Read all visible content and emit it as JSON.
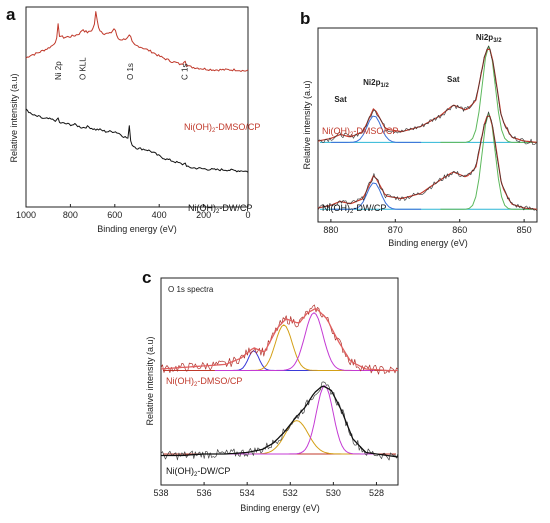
{
  "chart_data": [
    {
      "panel": "a",
      "type": "line",
      "xlabel": "Binding energy (eV)",
      "ylabel": "Relative intensity (a.u)",
      "xlim": [
        1000,
        0
      ],
      "xticks": [
        "1000",
        "800",
        "600",
        "400",
        "200",
        "0"
      ],
      "peak_labels": [
        {
          "text": "Ni 2p",
          "x": 855
        },
        {
          "text": "O KLL",
          "x": 745
        },
        {
          "text": "O 1s",
          "x": 531
        },
        {
          "text": "C 1s",
          "x": 285
        }
      ],
      "series": [
        {
          "name": "Ni(OH)2-DMSO/CP",
          "name_parts": [
            "Ni(OH)",
            "2",
            "-DMSO/CP"
          ],
          "color": "#c0392b",
          "x": [
            1000,
            980,
            960,
            940,
            920,
            900,
            880,
            870,
            860,
            855,
            850,
            830,
            800,
            780,
            760,
            750,
            745,
            740,
            720,
            700,
            690,
            685,
            680,
            670,
            650,
            620,
            600,
            590,
            580,
            560,
            540,
            531,
            525,
            510,
            490,
            470,
            450,
            430,
            400,
            380,
            350,
            320,
            300,
            290,
            285,
            280,
            260,
            230,
            200,
            150,
            100,
            50,
            20,
            0
          ],
          "y": [
            0.76,
            0.775,
            0.78,
            0.79,
            0.8,
            0.81,
            0.825,
            0.84,
            0.86,
            0.935,
            0.875,
            0.865,
            0.87,
            0.875,
            0.885,
            0.895,
            0.915,
            0.9,
            0.89,
            0.905,
            0.94,
            1.0,
            0.955,
            0.905,
            0.885,
            0.885,
            0.915,
            0.865,
            0.855,
            0.855,
            0.865,
            0.88,
            0.845,
            0.825,
            0.82,
            0.81,
            0.8,
            0.79,
            0.77,
            0.76,
            0.745,
            0.735,
            0.725,
            0.74,
            0.765,
            0.725,
            0.715,
            0.71,
            0.705,
            0.7,
            0.7,
            0.7,
            0.695,
            0.695
          ]
        },
        {
          "name": "Ni(OH)2-DW/CP",
          "name_parts": [
            "Ni(OH)",
            "2",
            "-DW/CP"
          ],
          "color": "#111111",
          "x": [
            1000,
            990,
            980,
            960,
            940,
            920,
            900,
            880,
            860,
            855,
            850,
            820,
            800,
            780,
            760,
            745,
            720,
            700,
            685,
            670,
            640,
            600,
            580,
            560,
            540,
            531,
            528,
            525,
            520,
            500,
            470,
            450,
            430,
            400,
            370,
            340,
            300,
            290,
            285,
            280,
            250,
            200,
            150,
            100,
            50,
            20,
            0
          ],
          "y": [
            0.5,
            0.49,
            0.475,
            0.465,
            0.46,
            0.45,
            0.45,
            0.445,
            0.44,
            0.455,
            0.43,
            0.425,
            0.42,
            0.42,
            0.41,
            0.405,
            0.41,
            0.4,
            0.395,
            0.395,
            0.385,
            0.385,
            0.375,
            0.36,
            0.35,
            0.45,
            0.33,
            0.32,
            0.315,
            0.3,
            0.295,
            0.29,
            0.28,
            0.26,
            0.245,
            0.235,
            0.22,
            0.215,
            0.245,
            0.205,
            0.2,
            0.195,
            0.19,
            0.19,
            0.185,
            0.185,
            0.18
          ]
        }
      ]
    },
    {
      "panel": "b",
      "type": "line",
      "xlabel": "Binding energy (eV)",
      "ylabel": "Relative intensity (a.u)",
      "xlim": [
        882,
        848
      ],
      "xticks": [
        "880",
        "870",
        "860",
        "850"
      ],
      "peak_labels": [
        {
          "text": "Sat",
          "x": 878.5
        },
        {
          "text": "Ni2p",
          "sub": "1/2",
          "x": 873
        },
        {
          "text": "Sat",
          "x": 861
        },
        {
          "text": "Ni2p",
          "sub": "3/2",
          "x": 855.5
        }
      ],
      "series": [
        {
          "name": "Ni(OH)2-DMSO/CP",
          "name_parts": [
            "Ni(OH)",
            "2",
            "-DMSO/CP"
          ],
          "color": "#c0392b",
          "offset": 0.5,
          "x": [
            882,
            880,
            878.5,
            877,
            875,
            873.3,
            871.5,
            869,
            866,
            863,
            861,
            859,
            857.5,
            856.2,
            855.5,
            854.8,
            853.5,
            852,
            850,
            848
          ],
          "y": [
            0.03,
            0.05,
            0.08,
            0.06,
            0.1,
            0.28,
            0.12,
            0.1,
            0.14,
            0.22,
            0.3,
            0.26,
            0.33,
            0.65,
            0.75,
            0.62,
            0.2,
            0.06,
            0.03,
            0.02
          ]
        },
        {
          "name": "Ni(OH)2-DW/CP",
          "name_parts": [
            "Ni(OH)",
            "2",
            "-DW/CP"
          ],
          "color": "#111111",
          "offset": 0.0,
          "x": [
            882,
            880,
            878.5,
            877,
            875,
            873.3,
            871.5,
            869,
            866,
            863,
            861,
            859,
            857.5,
            856.2,
            855.5,
            854.8,
            853.5,
            852,
            850,
            848
          ],
          "y": [
            0.03,
            0.05,
            0.08,
            0.06,
            0.1,
            0.28,
            0.12,
            0.1,
            0.14,
            0.24,
            0.3,
            0.26,
            0.33,
            0.65,
            0.75,
            0.62,
            0.2,
            0.06,
            0.03,
            0.02
          ]
        }
      ]
    },
    {
      "panel": "c",
      "type": "line",
      "title": "O 1s spectra",
      "xlabel": "Binding energy (eV)",
      "ylabel": "Relative intensity (a.u)",
      "xlim": [
        538,
        527
      ],
      "xticks": [
        "538",
        "536",
        "534",
        "532",
        "530",
        "528"
      ],
      "series": [
        {
          "name": "Ni(OH)2-DMSO/CP",
          "name_parts": [
            "Ni(OH)",
            "2",
            "-DMSO/CP"
          ],
          "color": "#c0392b",
          "offset": 0.55,
          "x": [
            538,
            537,
            536,
            535,
            534.3,
            533.7,
            533.2,
            532.6,
            532.2,
            531.6,
            531.2,
            530.8,
            530.3,
            529.8,
            529.2,
            528.5,
            527.5,
            527
          ],
          "y": [
            0.03,
            0.04,
            0.05,
            0.06,
            0.1,
            0.17,
            0.14,
            0.3,
            0.36,
            0.33,
            0.4,
            0.43,
            0.36,
            0.22,
            0.08,
            0.03,
            0.02,
            0.02
          ]
        },
        {
          "name": "Ni(OH)2-DW/CP",
          "name_parts": [
            "Ni(OH)",
            "2",
            "-DW/CP"
          ],
          "color": "#111111",
          "offset": 0.0,
          "x": [
            538,
            537,
            536,
            535,
            534,
            533.3,
            532.8,
            532.3,
            531.8,
            531.3,
            530.9,
            530.5,
            530.1,
            529.6,
            529.1,
            528.5,
            527.5,
            527
          ],
          "y": [
            0.01,
            0.01,
            0.02,
            0.02,
            0.03,
            0.05,
            0.09,
            0.16,
            0.25,
            0.33,
            0.42,
            0.47,
            0.44,
            0.3,
            0.12,
            0.03,
            0.01,
            0.0
          ]
        }
      ]
    }
  ]
}
